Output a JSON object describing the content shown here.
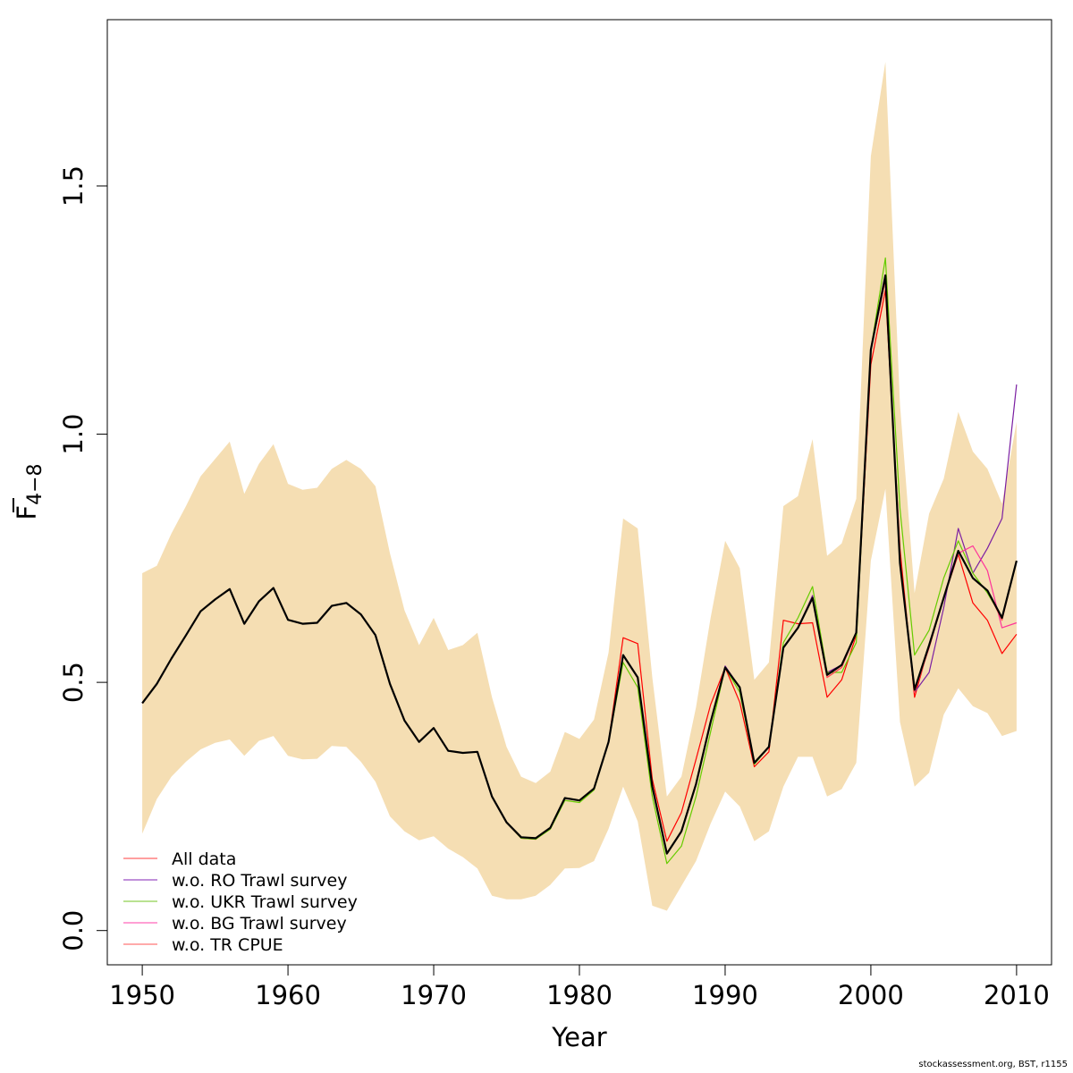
{
  "chart_data": {
    "type": "line",
    "title": "",
    "xlabel": "Year",
    "ylabel_main": "F",
    "ylabel_sub": "4−8",
    "xlim": [
      1947.6,
      2012.4
    ],
    "ylim": [
      -0.069,
      1.835
    ],
    "xticks": [
      "1950",
      "1960",
      "1970",
      "1980",
      "1990",
      "2000",
      "2010"
    ],
    "yticks": [
      "0.0",
      "0.5",
      "1.0",
      "1.5"
    ],
    "band_color": "#f5deb3",
    "years": [
      1950,
      1951,
      1952,
      1953,
      1954,
      1955,
      1956,
      1957,
      1958,
      1959,
      1960,
      1961,
      1962,
      1963,
      1964,
      1965,
      1966,
      1967,
      1968,
      1969,
      1970,
      1971,
      1972,
      1973,
      1974,
      1975,
      1976,
      1977,
      1978,
      1979,
      1980,
      1981,
      1982,
      1983,
      1984,
      1985,
      1986,
      1987,
      1988,
      1989,
      1990,
      1991,
      1992,
      1993,
      1994,
      1995,
      1996,
      1997,
      1998,
      1999,
      2000,
      2001,
      2002,
      2003,
      2004,
      2005,
      2006,
      2007,
      2008,
      2009,
      2010
    ],
    "band_upper": [
      0.72,
      0.735,
      0.8,
      0.855,
      0.915,
      0.95,
      0.985,
      0.88,
      0.94,
      0.98,
      0.9,
      0.888,
      0.892,
      0.93,
      0.948,
      0.93,
      0.895,
      0.76,
      0.645,
      0.575,
      0.63,
      0.565,
      0.575,
      0.6,
      0.47,
      0.37,
      0.31,
      0.297,
      0.32,
      0.4,
      0.386,
      0.425,
      0.56,
      0.83,
      0.81,
      0.51,
      0.27,
      0.31,
      0.45,
      0.63,
      0.785,
      0.73,
      0.505,
      0.54,
      0.855,
      0.875,
      0.99,
      0.755,
      0.78,
      0.87,
      1.56,
      1.75,
      1.06,
      0.68,
      0.84,
      0.91,
      1.045,
      0.965,
      0.93,
      0.86,
      1.025
    ],
    "band_lower": [
      0.195,
      0.265,
      0.31,
      0.34,
      0.365,
      0.378,
      0.385,
      0.352,
      0.382,
      0.392,
      0.352,
      0.345,
      0.346,
      0.372,
      0.37,
      0.34,
      0.3,
      0.23,
      0.2,
      0.182,
      0.19,
      0.165,
      0.148,
      0.125,
      0.07,
      0.063,
      0.063,
      0.07,
      0.092,
      0.125,
      0.126,
      0.14,
      0.205,
      0.29,
      0.22,
      0.05,
      0.04,
      0.09,
      0.14,
      0.215,
      0.28,
      0.25,
      0.18,
      0.2,
      0.29,
      0.35,
      0.35,
      0.27,
      0.285,
      0.338,
      0.745,
      0.89,
      0.42,
      0.29,
      0.318,
      0.435,
      0.488,
      0.452,
      0.438,
      0.392,
      0.402
    ],
    "series": [
      {
        "name": "All data",
        "color": "#ff0000",
        "width": 1.2,
        "values": [
          0.458,
          0.497,
          0.548,
          0.595,
          0.643,
          0.667,
          0.688,
          0.618,
          0.663,
          0.69,
          0.626,
          0.618,
          0.62,
          0.654,
          0.66,
          0.637,
          0.595,
          0.497,
          0.423,
          0.38,
          0.408,
          0.362,
          0.358,
          0.36,
          0.27,
          0.218,
          0.186,
          0.184,
          0.206,
          0.267,
          0.262,
          0.286,
          0.38,
          0.59,
          0.578,
          0.305,
          0.18,
          0.238,
          0.345,
          0.455,
          0.53,
          0.46,
          0.33,
          0.36,
          0.625,
          0.618,
          0.62,
          0.47,
          0.505,
          0.595,
          1.14,
          1.29,
          0.77,
          0.47,
          0.575,
          0.67,
          0.758,
          0.66,
          0.625,
          0.558,
          0.597
        ]
      },
      {
        "name": "w.o. RO Trawl survey",
        "color": "#7b1fa2",
        "width": 1.2,
        "values": [
          0.458,
          0.497,
          0.548,
          0.595,
          0.643,
          0.667,
          0.688,
          0.618,
          0.663,
          0.69,
          0.626,
          0.618,
          0.62,
          0.654,
          0.66,
          0.637,
          0.595,
          0.497,
          0.423,
          0.38,
          0.408,
          0.362,
          0.358,
          0.36,
          0.27,
          0.218,
          0.188,
          0.186,
          0.207,
          0.267,
          0.262,
          0.286,
          0.38,
          0.555,
          0.51,
          0.29,
          0.155,
          0.2,
          0.295,
          0.42,
          0.533,
          0.49,
          0.338,
          0.37,
          0.57,
          0.61,
          0.675,
          0.52,
          0.535,
          0.6,
          1.17,
          1.31,
          0.74,
          0.48,
          0.52,
          0.65,
          0.81,
          0.72,
          0.77,
          0.83,
          1.1
        ]
      },
      {
        "name": "w.o. UKR Trawl survey",
        "color": "#66cc00",
        "width": 1.2,
        "values": [
          0.458,
          0.497,
          0.548,
          0.595,
          0.643,
          0.667,
          0.688,
          0.618,
          0.663,
          0.69,
          0.626,
          0.618,
          0.62,
          0.654,
          0.66,
          0.637,
          0.595,
          0.497,
          0.423,
          0.38,
          0.408,
          0.362,
          0.358,
          0.36,
          0.27,
          0.218,
          0.186,
          0.184,
          0.204,
          0.262,
          0.258,
          0.283,
          0.38,
          0.54,
          0.49,
          0.27,
          0.135,
          0.17,
          0.27,
          0.4,
          0.53,
          0.48,
          0.335,
          0.37,
          0.58,
          0.63,
          0.693,
          0.52,
          0.52,
          0.58,
          1.17,
          1.355,
          0.85,
          0.555,
          0.605,
          0.71,
          0.785,
          0.72,
          0.68,
          0.63,
          0.745
        ]
      },
      {
        "name": "w.o. BG Trawl survey",
        "color": "#ff3399",
        "width": 1.2,
        "values": [
          0.458,
          0.497,
          0.548,
          0.595,
          0.643,
          0.667,
          0.688,
          0.618,
          0.663,
          0.69,
          0.626,
          0.618,
          0.62,
          0.654,
          0.66,
          0.637,
          0.595,
          0.497,
          0.423,
          0.38,
          0.408,
          0.362,
          0.358,
          0.36,
          0.27,
          0.218,
          0.188,
          0.186,
          0.207,
          0.267,
          0.262,
          0.286,
          0.38,
          0.555,
          0.51,
          0.29,
          0.155,
          0.2,
          0.295,
          0.42,
          0.53,
          0.49,
          0.338,
          0.37,
          0.57,
          0.61,
          0.67,
          0.51,
          0.53,
          0.6,
          1.17,
          1.31,
          0.74,
          0.48,
          0.57,
          0.67,
          0.76,
          0.775,
          0.725,
          0.61,
          0.62
        ]
      },
      {
        "name": "w.o. TR CPUE",
        "color": "#ff4d4d",
        "width": 1.2,
        "values": [
          0.458,
          0.497,
          0.548,
          0.595,
          0.643,
          0.667,
          0.688,
          0.618,
          0.663,
          0.69,
          0.626,
          0.618,
          0.62,
          0.654,
          0.66,
          0.637,
          0.595,
          0.497,
          0.423,
          0.38,
          0.408,
          0.362,
          0.358,
          0.36,
          0.27,
          0.218,
          0.188,
          0.186,
          0.207,
          0.267,
          0.262,
          0.286,
          0.38,
          0.555,
          0.51,
          0.29,
          0.155,
          0.2,
          0.295,
          0.42,
          0.53,
          0.49,
          0.338,
          0.37,
          0.57,
          0.61,
          0.67,
          0.51,
          0.53,
          0.6,
          1.17,
          1.31,
          0.74,
          0.48,
          0.57,
          0.67,
          0.765,
          0.71,
          0.685,
          0.625,
          0.745
        ]
      },
      {
        "name": "Estimate",
        "color": "#000000",
        "width": 2.2,
        "values": [
          0.458,
          0.497,
          0.548,
          0.595,
          0.643,
          0.667,
          0.688,
          0.618,
          0.663,
          0.69,
          0.626,
          0.618,
          0.62,
          0.654,
          0.66,
          0.637,
          0.595,
          0.497,
          0.423,
          0.38,
          0.408,
          0.362,
          0.358,
          0.36,
          0.27,
          0.218,
          0.188,
          0.186,
          0.207,
          0.267,
          0.262,
          0.286,
          0.38,
          0.555,
          0.51,
          0.29,
          0.155,
          0.2,
          0.295,
          0.42,
          0.53,
          0.49,
          0.338,
          0.37,
          0.57,
          0.61,
          0.67,
          0.515,
          0.535,
          0.6,
          1.17,
          1.32,
          0.74,
          0.485,
          0.575,
          0.67,
          0.765,
          0.71,
          0.685,
          0.63,
          0.745
        ]
      }
    ],
    "legend": {
      "position": "bottom-left",
      "entries": [
        {
          "label": "All data",
          "color": "#ff6666"
        },
        {
          "label": "w.o. RO Trawl survey",
          "color": "#9c4fc4"
        },
        {
          "label": "w.o. UKR Trawl survey",
          "color": "#8fd14f"
        },
        {
          "label": "w.o. BG Trawl survey",
          "color": "#ff66bb"
        },
        {
          "label": "w.o. TR CPUE",
          "color": "#ff7777"
        }
      ]
    }
  },
  "footer": {
    "credit": "stockassessment.org, BST, r1155"
  }
}
